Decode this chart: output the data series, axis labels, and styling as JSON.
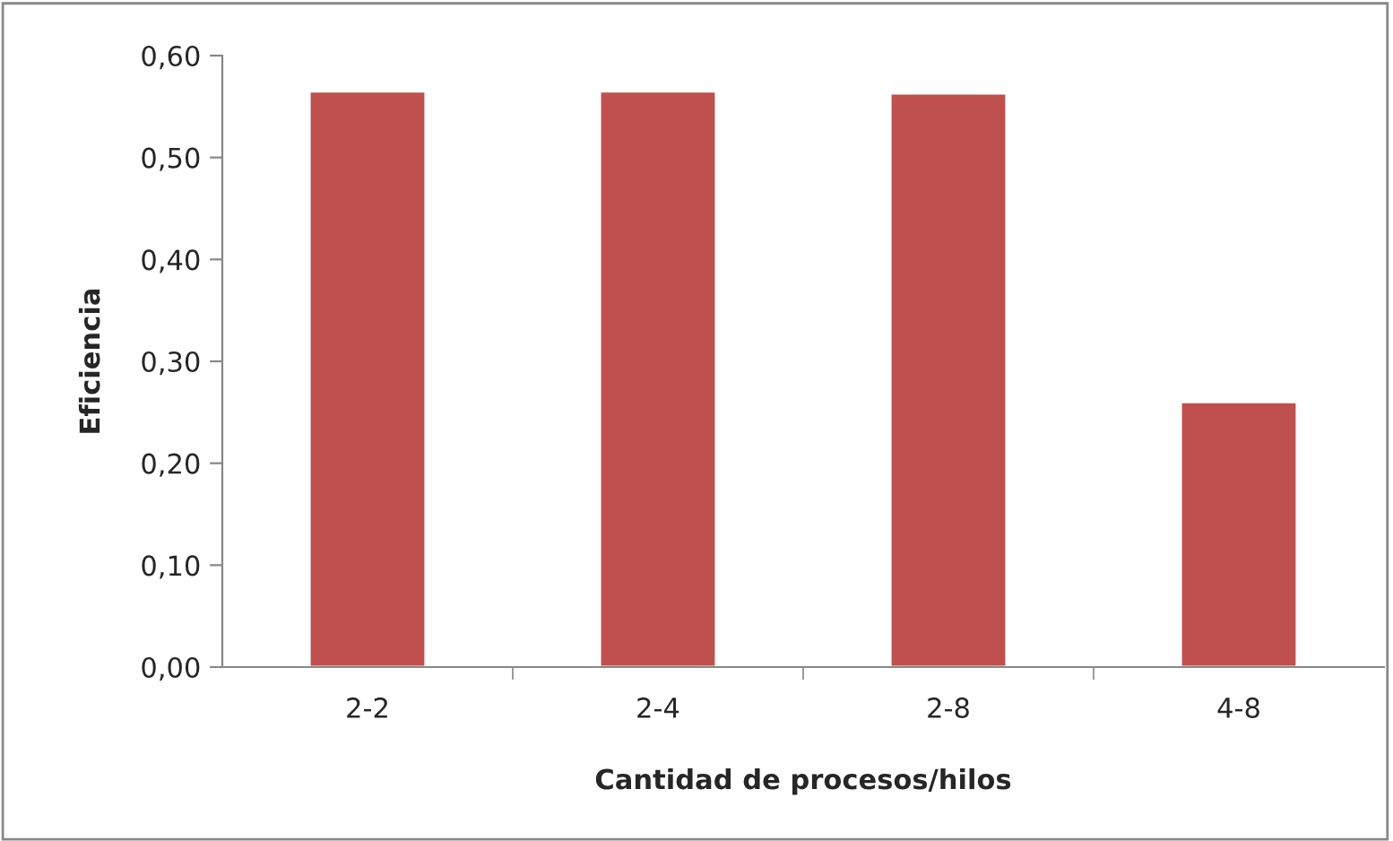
{
  "chart_data": {
    "type": "bar",
    "xlabel": "Cantidad de procesos/hilos",
    "ylabel": "Eficiencia",
    "categories": [
      "2-2",
      "2-4",
      "2-8",
      "4-8"
    ],
    "values": [
      0.565,
      0.565,
      0.563,
      0.26
    ],
    "color": "#c0504d",
    "ylim": [
      0,
      0.6
    ],
    "yticks": [
      {
        "value": 0,
        "label": "0,00"
      },
      {
        "value": 0.1,
        "label": "0,10"
      },
      {
        "value": 0.2,
        "label": "0,20"
      },
      {
        "value": 0.3,
        "label": "0,30"
      },
      {
        "value": 0.4,
        "label": "0,40"
      },
      {
        "value": 0.5,
        "label": "0,50"
      },
      {
        "value": 0.6,
        "label": "0,60"
      }
    ],
    "grid": false
  }
}
